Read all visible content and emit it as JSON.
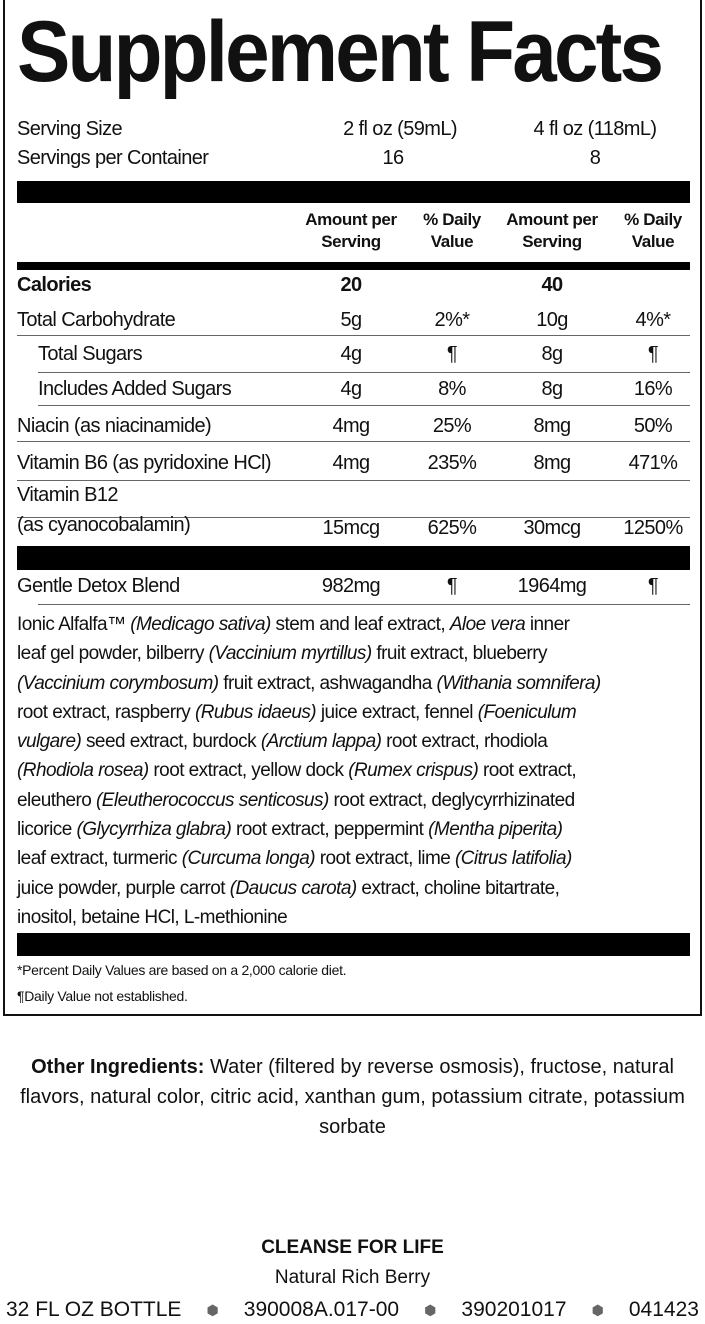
{
  "title": "Supplement Facts",
  "serving": {
    "size_label": "Serving Size",
    "size_1": "2 fl oz (59mL)",
    "size_2": "4 fl oz (118mL)",
    "per_container_label": "Servings per Container",
    "per_container_1": "16",
    "per_container_2": "8"
  },
  "headers": [
    "Amount per Serving",
    "% Daily Value",
    "Amount per Serving",
    "% Daily Value"
  ],
  "rows": [
    {
      "label": "Calories",
      "a1": "20",
      "d1": "",
      "a2": "40",
      "d2": ""
    },
    {
      "label": "Total Carbohydrate",
      "a1": "5g",
      "d1": "2%*",
      "a2": "10g",
      "d2": "4%*"
    },
    {
      "label": "Total Sugars",
      "a1": "4g",
      "d1": "¶",
      "a2": "8g",
      "d2": "¶"
    },
    {
      "label": "Includes Added Sugars",
      "a1": "4g",
      "d1": "8%",
      "a2": "8g",
      "d2": "16%"
    },
    {
      "label": "Niacin (as niacinamide)",
      "a1": "4mg",
      "d1": "25%",
      "a2": "8mg",
      "d2": "50%"
    },
    {
      "label": "Vitamin B6 (as pyridoxine HCl)",
      "a1": "4mg",
      "d1": "235%",
      "a2": "8mg",
      "d2": "471%"
    },
    {
      "label": "Vitamin B12",
      "label2": "(as cyanocobalamin)",
      "a1": "15mcg",
      "d1": "625%",
      "a2": "30mcg",
      "d2": "1250%"
    },
    {
      "label": "Gentle Detox Blend",
      "a1": "982mg",
      "d1": "¶",
      "a2": "1964mg",
      "d2": "¶"
    }
  ],
  "blend_lines": [
    [
      {
        "t": "Ionic Alfalfa™ "
      },
      {
        "t": "(Medicago sativa)",
        "i": true
      },
      {
        "t": " stem and leaf extract, "
      },
      {
        "t": "Aloe vera",
        "i": true
      },
      {
        "t": " inner"
      }
    ],
    [
      {
        "t": "leaf gel powder, bilberry "
      },
      {
        "t": "(Vaccinium myrtillus)",
        "i": true
      },
      {
        "t": " fruit extract, blueberry"
      }
    ],
    [
      {
        "t": "(Vaccinium corymbosum)",
        "i": true
      },
      {
        "t": " fruit extract, ashwagandha "
      },
      {
        "t": "(Withania somnifera)",
        "i": true
      }
    ],
    [
      {
        "t": "root extract, raspberry "
      },
      {
        "t": "(Rubus idaeus)",
        "i": true
      },
      {
        "t": " juice extract, fennel "
      },
      {
        "t": "(Foeniculum",
        "i": true
      }
    ],
    [
      {
        "t": "vulgare)",
        "i": true
      },
      {
        "t": " seed extract, burdock "
      },
      {
        "t": "(Arctium lappa)",
        "i": true
      },
      {
        "t": " root extract, rhodiola"
      }
    ],
    [
      {
        "t": "(Rhodiola rosea)",
        "i": true
      },
      {
        "t": " root extract, yellow dock "
      },
      {
        "t": "(Rumex crispus)",
        "i": true
      },
      {
        "t": " root extract,"
      }
    ],
    [
      {
        "t": "eleuthero "
      },
      {
        "t": "(Eleutherococcus senticosus)",
        "i": true
      },
      {
        "t": " root extract, deglycyrrhizinated"
      }
    ],
    [
      {
        "t": "licorice "
      },
      {
        "t": "(Glycyrrhiza glabra)",
        "i": true
      },
      {
        "t": " root extract, peppermint "
      },
      {
        "t": "(Mentha piperita)",
        "i": true
      }
    ],
    [
      {
        "t": "leaf extract, turmeric "
      },
      {
        "t": "(Curcuma longa)",
        "i": true
      },
      {
        "t": " root extract, lime "
      },
      {
        "t": "(Citrus latifolia)",
        "i": true
      }
    ],
    [
      {
        "t": "juice powder, purple carrot "
      },
      {
        "t": "(Daucus carota)",
        "i": true
      },
      {
        "t": " extract, choline bitartrate,"
      }
    ],
    [
      {
        "t": "inositol, betaine HCl, L-methionine"
      }
    ]
  ],
  "footnotes": [
    "*Percent Daily Values are based on a 2,000 calorie diet.",
    "¶Daily Value not established."
  ],
  "other": {
    "label": "Other Ingredients:",
    "text": " Water (filtered by reverse osmosis), fructose, natural flavors, natural color, citric acid, xanthan gum, potassium citrate, potassium sorbate"
  },
  "product": {
    "name": "CLEANSE FOR LIFE",
    "flavor": "Natural Rich Berry",
    "codes": [
      "32 FL OZ BOTTLE",
      "390008A.017-00",
      "390201017",
      "041423"
    ]
  }
}
